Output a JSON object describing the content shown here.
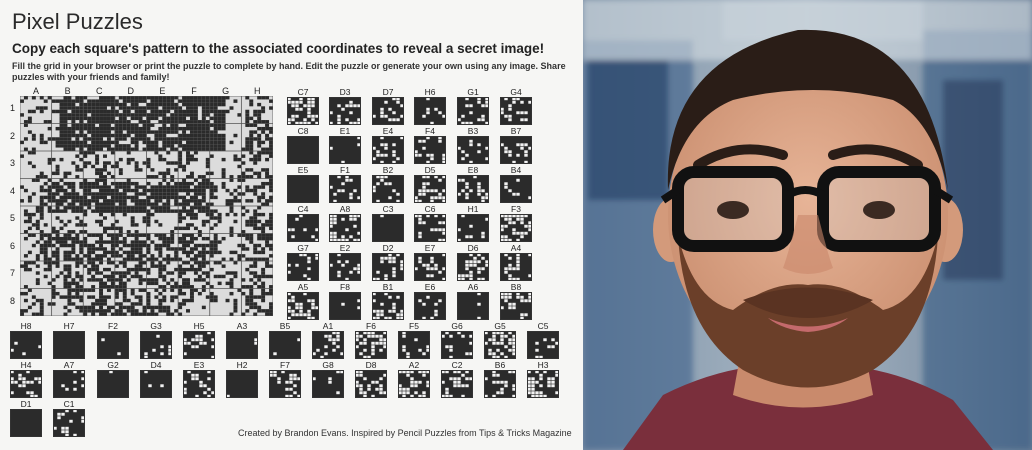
{
  "sheet": {
    "title": "Pixel Puzzles",
    "subtitle": "Copy each square's pattern to the associated coordinates to reveal a secret image!",
    "instructions": "Fill the grid in your browser or print the puzzle to complete by hand. Edit the puzzle or generate your own using any image. Share puzzles with your friends and family!",
    "credit": "Created by Brandon Evans. Inspired by Pencil Puzzles from Tips & Tricks Magazine"
  },
  "grid": {
    "columns": [
      "A",
      "B",
      "C",
      "D",
      "E",
      "F",
      "G",
      "H"
    ],
    "rows": [
      "1",
      "2",
      "3",
      "4",
      "5",
      "6",
      "7",
      "8"
    ]
  },
  "tiles": [
    "C7",
    "D3",
    "D7",
    "H6",
    "G1",
    "G4",
    "C8",
    "E1",
    "E4",
    "F4",
    "B3",
    "B7",
    "E5",
    "F1",
    "B2",
    "D5",
    "E8",
    "B4",
    "C4",
    "A8",
    "C3",
    "C6",
    "H1",
    "F3",
    "G7",
    "E2",
    "D2",
    "E7",
    "D6",
    "A4",
    "A5",
    "F8",
    "B1",
    "E6",
    "A6",
    "B8",
    "H8",
    "H7",
    "F2",
    "G3",
    "H5",
    "A3",
    "B5",
    "A1",
    "F6",
    "F5",
    "G6",
    "G5",
    "C5",
    "H4",
    "A7",
    "G2",
    "D4",
    "E3",
    "H2",
    "F7",
    "G8",
    "D8",
    "A2",
    "C2",
    "B6",
    "H3",
    "D1",
    "C1"
  ],
  "colors": {
    "ink": "#2b2b2b",
    "paper": "#f6f6f4",
    "grid_line": "#9a9a9a"
  }
}
